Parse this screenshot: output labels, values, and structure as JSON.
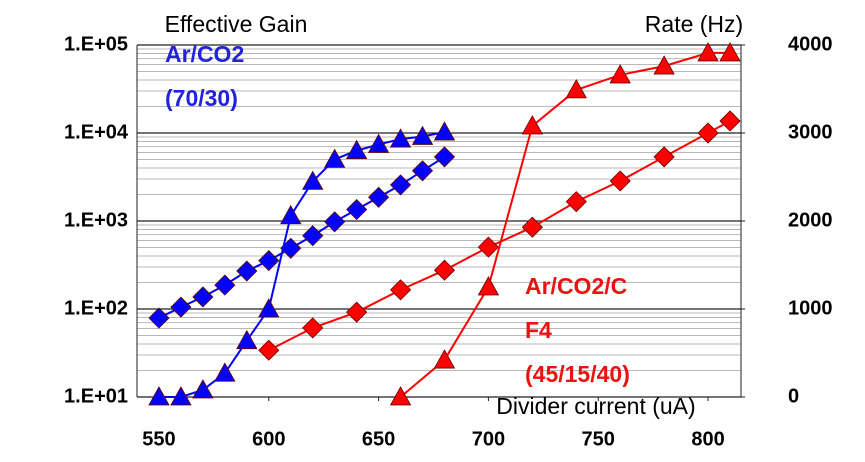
{
  "chart_data": {
    "type": "line",
    "y_label": "Effective Gain",
    "y2_label": "Rate (Hz)",
    "x_label": "Divider current (uA)",
    "xlim": [
      540,
      815
    ],
    "xticks": [
      550,
      600,
      650,
      700,
      750,
      800
    ],
    "ylim": [
      10,
      100000
    ],
    "y_log": true,
    "yticks": [
      {
        "value": 10,
        "label": "1.E+01"
      },
      {
        "value": 100,
        "label": "1.E+02"
      },
      {
        "value": 1000,
        "label": "1.E+03"
      },
      {
        "value": 10000,
        "label": "1.E+04"
      },
      {
        "value": 100000,
        "label": "1.E+05"
      }
    ],
    "y2lim": [
      0,
      4000
    ],
    "y2ticks": [
      0,
      1000,
      2000,
      3000,
      4000
    ],
    "grid": true,
    "minor_grid": true,
    "series": [
      {
        "color": "#0000ff",
        "marker": "diamond",
        "x": [
          550,
          560,
          570,
          580,
          590,
          600,
          610,
          620,
          630,
          640,
          650,
          660,
          670,
          680
        ],
        "values": [
          79,
          105,
          137,
          187,
          270,
          355,
          490,
          680,
          980,
          1350,
          1860,
          2570,
          3720,
          5350
        ]
      },
      {
        "color": "#0000ff",
        "marker": "triangle",
        "axis": "y2",
        "x": [
          550,
          560,
          570,
          580,
          590,
          600,
          610,
          620,
          630,
          640,
          650,
          660,
          670,
          680
        ],
        "values": [
          0,
          0,
          80,
          270,
          640,
          1000,
          2060,
          2450,
          2700,
          2800,
          2870,
          2930,
          2960,
          3010
        ]
      },
      {
        "color": "#ff0000",
        "marker": "diamond",
        "x": [
          600,
          620,
          640,
          660,
          680,
          700,
          720,
          740,
          760,
          780,
          800,
          810
        ],
        "values": [
          34,
          61,
          92,
          165,
          276,
          505,
          850,
          1660,
          2850,
          5350,
          10000,
          13700
        ]
      },
      {
        "color": "#ff0000",
        "marker": "triangle",
        "axis": "y2",
        "x": [
          660,
          680,
          700,
          720,
          740,
          760,
          780,
          800,
          810
        ],
        "values": [
          0,
          420,
          1250,
          3080,
          3490,
          3660,
          3760,
          3910,
          3910
        ]
      }
    ],
    "annotations": [
      {
        "lines": [
          "Ar/CO2",
          "(70/30)"
        ],
        "color": "#2222dd"
      },
      {
        "lines": [
          "Ar/CO2/C",
          "F4",
          "(45/15/40)"
        ],
        "color": "#ee1111"
      }
    ]
  }
}
